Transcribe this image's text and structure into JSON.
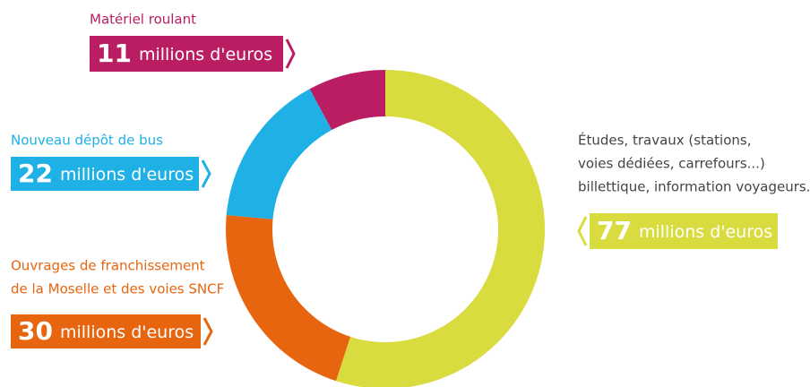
{
  "chart_data": {
    "type": "donut",
    "categories": [
      [
        "Études, travaux (stations,",
        "voies dédiées, carrefours...)",
        "billettique, information voyageurs..."
      ],
      [
        "Ouvrages de franchissement",
        "de la Moselle et des voies SNCF"
      ],
      [
        "Nouveau dépôt de bus"
      ],
      [
        "Matériel roulant"
      ]
    ],
    "values": [
      77,
      30,
      22,
      11
    ],
    "unit": "millions d'euros",
    "colors": [
      "#d9dc3e",
      "#e8650f",
      "#1fb1e5",
      "#bb1d63"
    ]
  }
}
